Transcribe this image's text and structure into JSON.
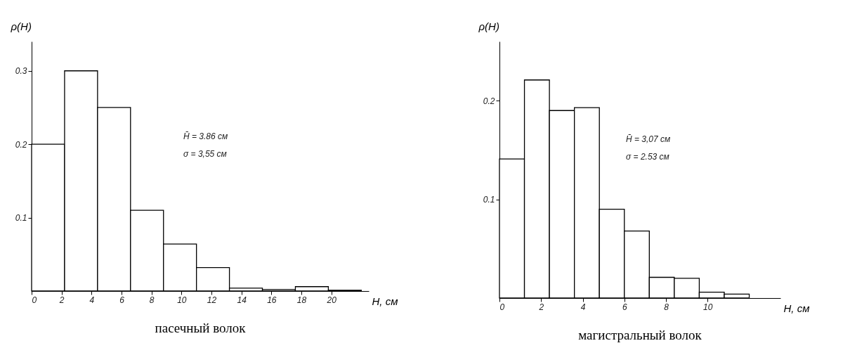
{
  "chart_data": [
    {
      "type": "histogram",
      "title": "пасечный волок",
      "xlabel": "H, см",
      "ylabel": "ρ(H)",
      "color": "#ffffff",
      "bins": [
        0,
        2.2,
        4.4,
        6.6,
        8.8,
        11,
        13.2,
        15.4,
        17.6,
        19.8,
        22
      ],
      "values": [
        0.2,
        0.3,
        0.25,
        0.11,
        0.064,
        0.032,
        0.004,
        0.002,
        0.006,
        0.001
      ],
      "xlim": [
        0,
        22.5
      ],
      "xticks": [
        0,
        2,
        4,
        6,
        8,
        10,
        12,
        14,
        16,
        18,
        20
      ],
      "ylim": [
        0,
        0.34
      ],
      "yticks": [
        0.1,
        0.2,
        0.3
      ],
      "annotations": [
        "H̄ = 3.86 см",
        "σ = 3,55 см"
      ]
    },
    {
      "type": "histogram",
      "title": "магистральный волок",
      "xlabel": "H, см",
      "ylabel": "ρ(H)",
      "color": "#ffffff",
      "bins": [
        0,
        1.2,
        2.4,
        3.6,
        4.8,
        6,
        7.2,
        8.4,
        9.6,
        10.8,
        12
      ],
      "values": [
        0.141,
        0.221,
        0.19,
        0.193,
        0.09,
        0.068,
        0.021,
        0.02,
        0.006,
        0.004
      ],
      "xlim": [
        0,
        13.5
      ],
      "xticks": [
        0,
        2,
        4,
        6,
        8,
        10
      ],
      "ylim": [
        0,
        0.26
      ],
      "yticks": [
        0.1,
        0.2
      ],
      "annotations": [
        "H̄ = 3,07 см",
        "σ = 2.53 см"
      ]
    }
  ]
}
